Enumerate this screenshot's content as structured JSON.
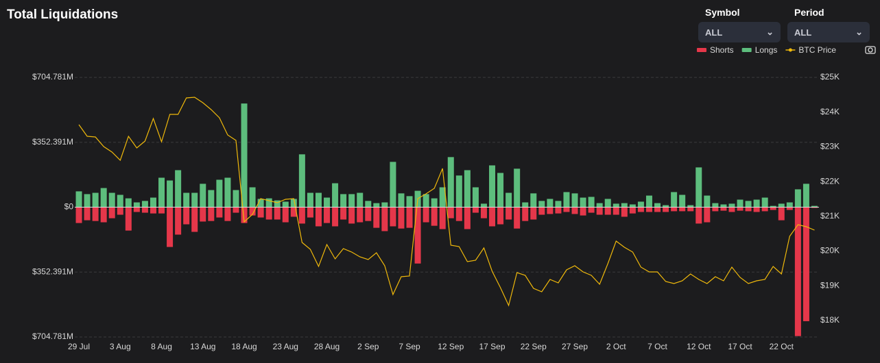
{
  "controls": [
    {
      "label": "Symbol",
      "value": "ALL"
    },
    {
      "label": "Period",
      "value": "ALL"
    }
  ],
  "chart_data": {
    "type": "bar",
    "title": "Total Liquidations",
    "categories": [
      "29 Jul",
      null,
      null,
      null,
      null,
      "3 Aug",
      null,
      null,
      null,
      null,
      "8 Aug",
      null,
      null,
      null,
      null,
      "13 Aug",
      null,
      null,
      null,
      null,
      "18 Aug",
      null,
      null,
      null,
      null,
      "23 Aug",
      null,
      null,
      null,
      null,
      "28 Aug",
      null,
      null,
      null,
      null,
      "2 Sep",
      null,
      null,
      null,
      null,
      "7 Sep",
      null,
      null,
      null,
      null,
      "12 Sep",
      null,
      null,
      null,
      null,
      "17 Sep",
      null,
      null,
      null,
      null,
      "22 Sep",
      null,
      null,
      null,
      null,
      "27 Sep",
      null,
      null,
      null,
      null,
      "2 Oct",
      null,
      null,
      null,
      null,
      "7 Oct",
      null,
      null,
      null,
      null,
      "12 Oct",
      null,
      null,
      null,
      null,
      "17 Oct",
      null,
      null,
      null,
      null,
      "22 Oct",
      null,
      null,
      null,
      null
    ],
    "series": [
      {
        "name": "Shorts",
        "color": "#e5374a",
        "values": [
          -86,
          -71,
          -75,
          -82,
          -60,
          -41,
          -127,
          -26,
          -30,
          -34,
          -34,
          -216,
          -149,
          -93,
          -134,
          -78,
          -75,
          -56,
          -75,
          -30,
          -86,
          -45,
          -56,
          -67,
          -67,
          -82,
          -52,
          -89,
          -56,
          -104,
          -86,
          -104,
          -67,
          -89,
          -82,
          -75,
          -112,
          -130,
          -104,
          -116,
          -112,
          -306,
          -82,
          -101,
          -119,
          -60,
          -75,
          -119,
          -30,
          -60,
          -104,
          -93,
          -67,
          -116,
          -75,
          -67,
          -41,
          -37,
          -34,
          -26,
          -37,
          -45,
          -30,
          -41,
          -41,
          -41,
          -52,
          -34,
          -26,
          -26,
          -26,
          -26,
          -22,
          -22,
          -22,
          -89,
          -82,
          -22,
          -19,
          -26,
          -19,
          -22,
          -26,
          -22,
          -15,
          -71,
          -15,
          -700,
          -619,
          -4
        ]
      },
      {
        "name": "Longs",
        "color": "#5dbd7d",
        "values": [
          86,
          71,
          78,
          104,
          78,
          67,
          48,
          26,
          34,
          52,
          160,
          145,
          201,
          78,
          78,
          127,
          93,
          149,
          160,
          93,
          563,
          108,
          45,
          48,
          37,
          30,
          45,
          287,
          78,
          78,
          52,
          130,
          71,
          71,
          78,
          34,
          22,
          26,
          246,
          75,
          60,
          89,
          71,
          48,
          108,
          272,
          172,
          201,
          108,
          19,
          227,
          186,
          78,
          209,
          26,
          75,
          34,
          45,
          34,
          82,
          75,
          52,
          56,
          22,
          45,
          19,
          22,
          15,
          30,
          63,
          22,
          11,
          82,
          67,
          11,
          216,
          63,
          22,
          15,
          19,
          41,
          34,
          41,
          52,
          7,
          19,
          26,
          97,
          127,
          7
        ]
      },
      {
        "name": "BTC Price",
        "type": "line",
        "axis": "y2",
        "color": "#f0b90b",
        "values": [
          23639,
          23304,
          23284,
          23008,
          22850,
          22613,
          23304,
          22968,
          23166,
          23817,
          23146,
          23935,
          23935,
          24408,
          24428,
          24270,
          24073,
          23836,
          23343,
          23185,
          20838,
          21055,
          21509,
          21450,
          21391,
          21489,
          21509,
          20247,
          20049,
          19556,
          20187,
          19773,
          20069,
          19970,
          19832,
          19753,
          19951,
          19576,
          18748,
          19260,
          19280,
          21509,
          21647,
          21805,
          22377,
          20168,
          20128,
          19694,
          19734,
          20089,
          19418,
          18945,
          18432,
          19379,
          19300,
          18925,
          18826,
          19181,
          19083,
          19458,
          19576,
          19398,
          19300,
          19043,
          19635,
          20286,
          20108,
          19970,
          19536,
          19398,
          19398,
          19122,
          19063,
          19142,
          19339,
          19181,
          19063,
          19260,
          19142,
          19536,
          19241,
          19063,
          19142,
          19181,
          19556,
          19339,
          20424,
          20759,
          20700,
          20602
        ]
      }
    ],
    "ylim": [
      -704.781,
      704.781
    ],
    "yticks": [
      {
        "value": 704.781,
        "label": "$704.781M"
      },
      {
        "value": 352.391,
        "label": "$352.391M"
      },
      {
        "value": 0,
        "label": "$0"
      },
      {
        "value": -352.391,
        "label": "$352.391M"
      },
      {
        "value": -704.781,
        "label": "$704.781M"
      }
    ],
    "y2lim": [
      17525,
      25000
    ],
    "y2ticks": [
      {
        "value": 18000,
        "label": "$18K"
      },
      {
        "value": 19000,
        "label": "$19K"
      },
      {
        "value": 20000,
        "label": "$20K"
      },
      {
        "value": 21000,
        "label": "$21K"
      },
      {
        "value": 22000,
        "label": "$22K"
      },
      {
        "value": 23000,
        "label": "$23K"
      },
      {
        "value": 24000,
        "label": "$24K"
      },
      {
        "value": 25000,
        "label": "$25K"
      }
    ],
    "grid": true
  }
}
